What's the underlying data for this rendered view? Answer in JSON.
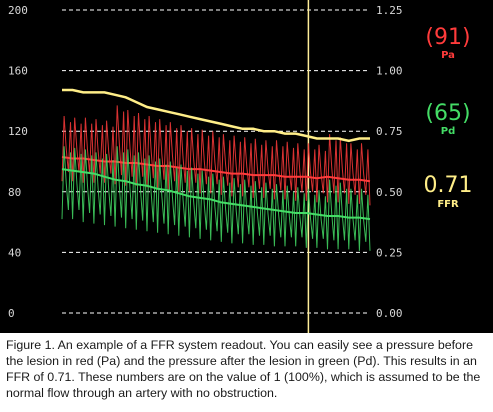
{
  "chart_data": {
    "type": "line",
    "left_axis": {
      "ylim": [
        0,
        200
      ],
      "ticks": [
        "200",
        "160",
        "120",
        "80",
        "40",
        "0"
      ]
    },
    "right_axis": {
      "ylim": [
        0,
        1.25
      ],
      "ticks": [
        "1.25",
        "1.00",
        "0.75",
        "0.50",
        "0.25",
        "0.00"
      ]
    },
    "series": [
      {
        "label": "Pa",
        "color": "#ff3b3b",
        "axis": "left",
        "baseline": [
          103,
          102,
          102,
          101,
          100,
          100,
          99,
          99,
          98,
          97,
          97,
          96,
          95,
          95,
          94,
          93,
          92,
          92,
          91,
          91,
          91,
          90,
          90,
          90,
          89,
          90,
          89,
          88,
          88,
          87
        ],
        "pulse_high": [
          130,
          129,
          129,
          128,
          127,
          137,
          134,
          132,
          130,
          128,
          126,
          124,
          122,
          121,
          120,
          118,
          117,
          116,
          115,
          114,
          114,
          113,
          112,
          112,
          111,
          118,
          116,
          112,
          112,
          110
        ],
        "pulse_low": [
          87,
          87,
          86,
          86,
          86,
          85,
          84,
          84,
          83,
          82,
          81,
          80,
          80,
          79,
          79,
          78,
          77,
          77,
          76,
          76,
          75,
          75,
          74,
          74,
          73,
          73,
          73,
          72,
          72,
          71
        ]
      },
      {
        "label": "Pd",
        "color": "#44dd66",
        "axis": "left",
        "baseline": [
          95,
          94,
          93,
          92,
          90,
          88,
          87,
          85,
          84,
          82,
          81,
          79,
          77,
          76,
          75,
          73,
          72,
          71,
          70,
          69,
          68,
          67,
          66,
          66,
          65,
          64,
          64,
          63,
          63,
          62
        ],
        "pulse_high": [
          110,
          109,
          108,
          106,
          105,
          110,
          108,
          106,
          104,
          102,
          100,
          98,
          96,
          94,
          92,
          90,
          89,
          88,
          87,
          86,
          85,
          84,
          83,
          82,
          81,
          88,
          86,
          82,
          82,
          80
        ],
        "pulse_low": [
          62,
          62,
          60,
          59,
          58,
          57,
          56,
          55,
          54,
          53,
          52,
          51,
          50,
          49,
          48,
          47,
          46,
          46,
          45,
          45,
          44,
          44,
          44,
          43,
          43,
          42,
          42,
          42,
          41,
          41
        ]
      },
      {
        "label": "FFR",
        "color": "#ffee88",
        "axis": "right",
        "values": [
          0.92,
          0.92,
          0.91,
          0.91,
          0.91,
          0.9,
          0.89,
          0.87,
          0.85,
          0.84,
          0.83,
          0.82,
          0.81,
          0.8,
          0.79,
          0.78,
          0.77,
          0.76,
          0.76,
          0.75,
          0.75,
          0.74,
          0.74,
          0.73,
          0.72,
          0.72,
          0.72,
          0.71,
          0.72,
          0.72
        ]
      }
    ],
    "cursor_fraction": 0.8,
    "colors": {
      "background": "#000000",
      "grid": "#ffffff",
      "cursor": "#ffee99",
      "pa": "#ff3b3b",
      "pd": "#44dd66",
      "ffr": "#ffee88"
    }
  },
  "readouts": {
    "pa": {
      "value": "(91)",
      "label": "Pa"
    },
    "pd": {
      "value": "(65)",
      "label": "Pd"
    },
    "ffr": {
      "value": "0.71",
      "label": "FFR"
    }
  },
  "caption": "Figure 1. An example of a FFR system readout. You can easily see a pressure before the lesion in red (Pa) and the pressure after the lesion in green (Pd). This results in an FFR of 0.71. These numbers are on the value of 1 (100%), which is assumed to be the normal flow through an artery with no obstruction."
}
